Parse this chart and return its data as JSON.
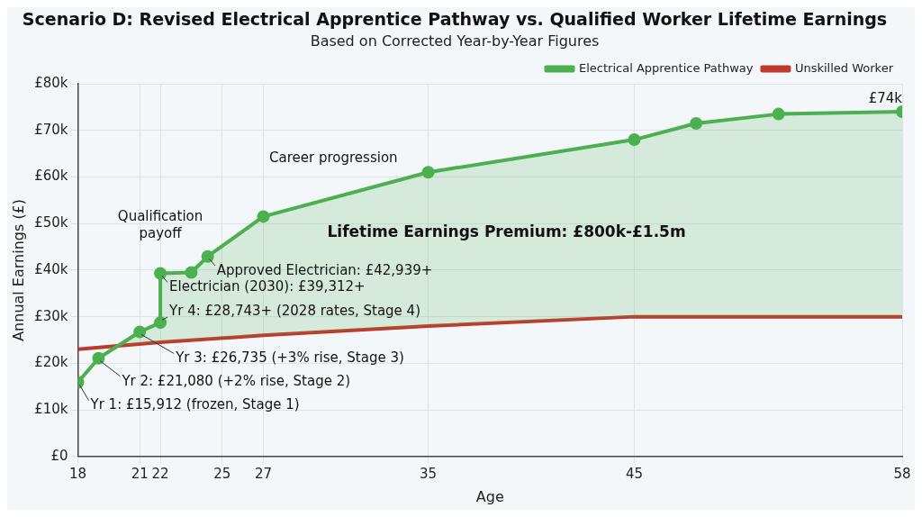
{
  "chart_data": {
    "type": "line",
    "title": "Scenario D: Revised Electrical Apprentice Pathway vs. Qualified Worker Lifetime Earnings",
    "subtitle": "Based on Corrected Year-by-Year Figures",
    "xlabel": "Age",
    "ylabel": "Annual Earnings (£)",
    "series": [
      {
        "name": "Electrical Apprentice Pathway",
        "color": "#4caf50",
        "marker": "circle",
        "x": [
          18,
          19,
          21,
          22,
          22,
          23.5,
          24.3,
          27,
          35,
          45,
          48,
          52,
          58
        ],
        "values": [
          15912,
          21080,
          26735,
          28743,
          39312,
          39500,
          42939,
          51500,
          61000,
          68000,
          71500,
          73500,
          74000
        ]
      },
      {
        "name": "Unskilled Worker",
        "color": "#c0392b",
        "x": [
          18,
          22,
          27,
          35,
          45,
          58
        ],
        "values": [
          23000,
          24500,
          26000,
          28000,
          30000,
          30000
        ]
      }
    ],
    "xlim": [
      18,
      58
    ],
    "xticks": [
      18,
      21,
      22,
      25,
      27,
      35,
      45,
      58
    ],
    "ylim": [
      0,
      80000
    ],
    "yticks": [
      {
        "value": 0,
        "label": "£0"
      },
      {
        "value": 10000,
        "label": "£10k"
      },
      {
        "value": 20000,
        "label": "£20k"
      },
      {
        "value": 30000,
        "label": "£30k"
      },
      {
        "value": 40000,
        "label": "£40k"
      },
      {
        "value": 50000,
        "label": "£50k"
      },
      {
        "value": 60000,
        "label": "£60k"
      },
      {
        "value": 70000,
        "label": "£70k"
      },
      {
        "value": 80000,
        "label": "£80k"
      }
    ],
    "annotations": [
      {
        "text": "Yr 1: £15,912 (frozen, Stage 1)",
        "x": 18,
        "y": 15912
      },
      {
        "text": "Yr 2: £21,080 (+2% rise, Stage 2)",
        "x": 19,
        "y": 21080
      },
      {
        "text": "Yr 3: £26,735 (+3% rise, Stage 3)",
        "x": 21,
        "y": 26735
      },
      {
        "text": "Yr 4: £28,743+ (2028 rates, Stage 4)",
        "x": 22,
        "y": 28743
      },
      {
        "text": "Electrician (2030): £39,312+",
        "x": 22,
        "y": 39312
      },
      {
        "text": "Approved Electrician: £42,939+",
        "x": 24.3,
        "y": 42939
      },
      {
        "text": "£74k",
        "x": 58,
        "y": 74000
      },
      "Qualification payoff",
      "Career progression",
      "Lifetime Earnings Premium: £800k-£1.5m"
    ],
    "grid": true,
    "legend": "top right",
    "line_style": "solid"
  }
}
